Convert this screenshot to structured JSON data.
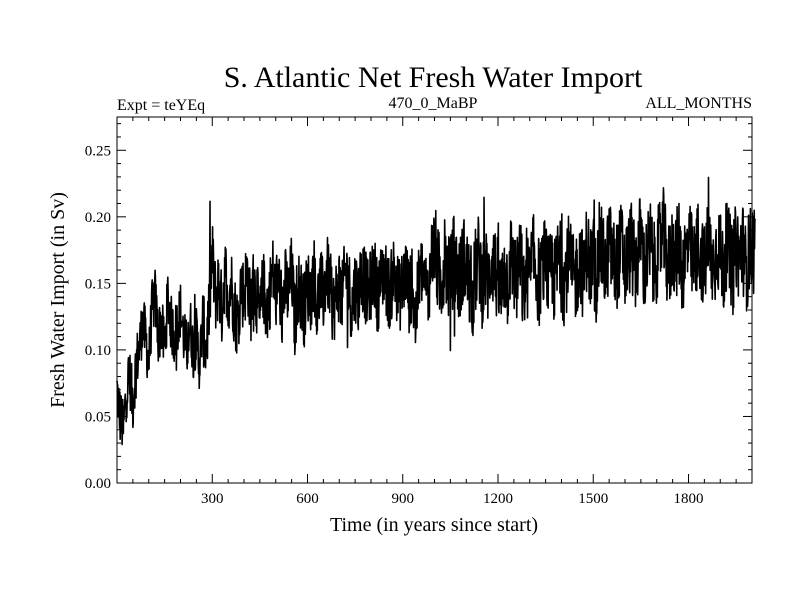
{
  "chart_data": {
    "type": "line",
    "title": "S. Atlantic Net Fresh Water Import",
    "subtitle_left": "Expt = teYEq",
    "subtitle_center": "470_0_MaBP",
    "subtitle_right": "ALL_MONTHS",
    "xlabel": "Time (in years since start)",
    "ylabel": "Fresh Water Import (in Sv)",
    "xlim": [
      0,
      2000
    ],
    "ylim": [
      0,
      0.275
    ],
    "xticks": [
      300,
      600,
      900,
      1200,
      1500,
      1800
    ],
    "xtick_labels": [
      "300",
      "600",
      "900",
      "1200",
      "1500",
      "1800"
    ],
    "yticks": [
      0.0,
      0.05,
      0.1,
      0.15,
      0.2,
      0.25
    ],
    "ytick_labels": [
      "0.00",
      "0.05",
      "0.10",
      "0.15",
      "0.20",
      "0.25"
    ],
    "series": [
      {
        "name": "Fresh Water Import",
        "x_start": 0,
        "x_step": 10,
        "values": [
          0.07,
          0.05,
          0.04,
          0.07,
          0.08,
          0.06,
          0.09,
          0.1,
          0.12,
          0.11,
          0.09,
          0.13,
          0.14,
          0.11,
          0.12,
          0.1,
          0.14,
          0.12,
          0.11,
          0.12,
          0.13,
          0.11,
          0.1,
          0.12,
          0.1,
          0.11,
          0.09,
          0.12,
          0.1,
          0.13,
          0.17,
          0.14,
          0.15,
          0.13,
          0.16,
          0.14,
          0.15,
          0.13,
          0.12,
          0.15,
          0.14,
          0.16,
          0.13,
          0.15,
          0.14,
          0.12,
          0.15,
          0.13,
          0.14,
          0.16,
          0.14,
          0.15,
          0.13,
          0.15,
          0.14,
          0.16,
          0.12,
          0.15,
          0.14,
          0.13,
          0.15,
          0.14,
          0.16,
          0.13,
          0.15,
          0.14,
          0.16,
          0.15,
          0.13,
          0.14,
          0.15,
          0.14,
          0.16,
          0.15,
          0.13,
          0.15,
          0.14,
          0.16,
          0.15,
          0.14,
          0.15,
          0.16,
          0.14,
          0.15,
          0.16,
          0.15,
          0.14,
          0.16,
          0.15,
          0.14,
          0.15,
          0.16,
          0.14,
          0.15,
          0.12,
          0.15,
          0.16,
          0.15,
          0.14,
          0.17,
          0.18,
          0.16,
          0.15,
          0.17,
          0.16,
          0.15,
          0.17,
          0.16,
          0.15,
          0.17,
          0.16,
          0.15,
          0.14,
          0.16,
          0.17,
          0.15,
          0.16,
          0.15,
          0.17,
          0.16,
          0.15,
          0.14,
          0.16,
          0.15,
          0.17,
          0.16,
          0.15,
          0.17,
          0.14,
          0.16,
          0.15,
          0.17,
          0.16,
          0.15,
          0.16,
          0.17,
          0.15,
          0.16,
          0.15,
          0.17,
          0.16,
          0.15,
          0.17,
          0.16,
          0.15,
          0.16,
          0.17,
          0.15,
          0.18,
          0.16,
          0.17,
          0.15,
          0.18,
          0.17,
          0.16,
          0.18,
          0.17,
          0.16,
          0.17,
          0.18,
          0.16,
          0.17,
          0.18,
          0.16,
          0.17,
          0.19,
          0.16,
          0.17,
          0.18,
          0.16,
          0.17,
          0.18,
          0.19,
          0.17,
          0.16,
          0.18,
          0.17,
          0.18,
          0.16,
          0.17,
          0.18,
          0.17,
          0.16,
          0.18,
          0.17,
          0.16,
          0.18,
          0.17,
          0.16,
          0.18,
          0.17,
          0.16,
          0.18,
          0.17,
          0.16,
          0.18,
          0.17,
          0.18,
          0.16,
          0.17,
          0.18,
          0.17
        ]
      }
    ]
  }
}
